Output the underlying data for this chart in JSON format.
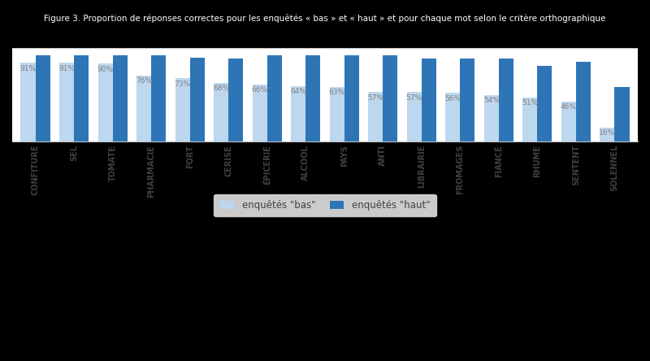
{
  "categories": [
    "CONFITURE",
    "SEL",
    "TOMATE",
    "PHARMACIE",
    "FORT",
    "CERISE",
    "ÉPICERIE",
    "ALCOOL",
    "PAYS",
    "ANTI",
    "LIBRAIRIE",
    "FROMAGES",
    "FIANCÉ",
    "RHUME",
    "SENTENT",
    "SOLENNEL"
  ],
  "bas_values": [
    91,
    91,
    90,
    76,
    73,
    68,
    66,
    64,
    63,
    57,
    57,
    56,
    54,
    51,
    46,
    16
  ],
  "haut_values": [
    100,
    100,
    100,
    100,
    97,
    96,
    100,
    100,
    100,
    100,
    96,
    96,
    96,
    88,
    92,
    63
  ],
  "color_bas": "#bdd7ee",
  "color_haut": "#2e75b6",
  "title": "Figure 3. Proportion de réponses correctes pour les enquêtés « bas » et « haut » et pour chaque mot selon le critère orthographique",
  "legend_bas": "enquêtés \"bas\"",
  "legend_haut": "enquêtés \"haut\"",
  "ylim": [
    0,
    108
  ],
  "bar_width": 0.38,
  "outer_bg": "#000000",
  "plot_bg": "#ffffff",
  "title_color": "#ffffff",
  "label_color": "#808080",
  "tick_color": "#404040",
  "grid_color": "#c0c0c0",
  "legend_frame_color": "#e0e0e0",
  "title_fontsize": 7.5,
  "tick_fontsize": 7,
  "label_fontsize": 6.5
}
